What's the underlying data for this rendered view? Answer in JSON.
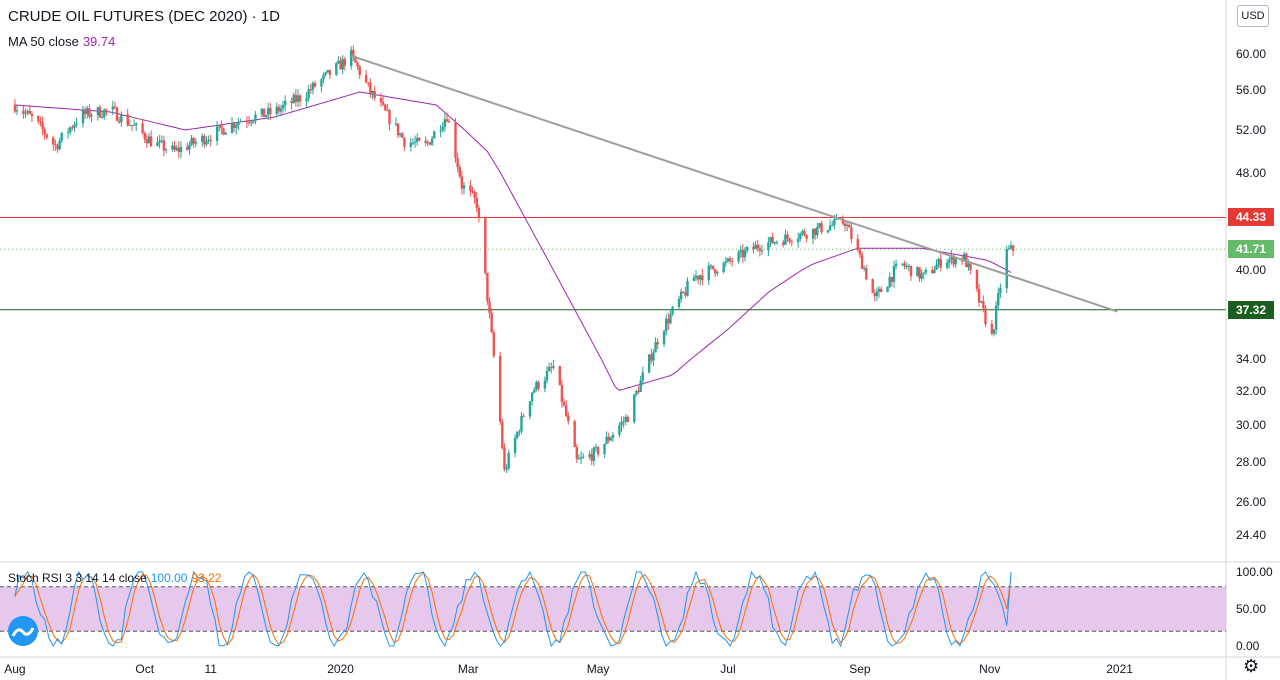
{
  "header": {
    "title": "CRUDE OIL FUTURES (DEC 2020) · 1D",
    "ma_label": "MA 50 close",
    "ma_value": "39.74"
  },
  "indicator": {
    "label": "Stoch RSI 3 3 14 14 close",
    "k_value": "100.00",
    "d_value": "93.22"
  },
  "currency": "USD",
  "price_labels": [
    {
      "value": "44.33",
      "color": "#e53935"
    },
    {
      "value": "41.71",
      "color": "#66bb6a"
    },
    {
      "value": "37.32",
      "color": "#1b5e20"
    }
  ],
  "colors": {
    "up": "#26a69a",
    "down": "#ef5350",
    "ma": "#9c27b0",
    "trend": "#9e9e9e",
    "k": "#2196f3",
    "d": "#ff6d00",
    "rsi_band": "#e1bee7"
  },
  "chart_data": {
    "type": "candlestick",
    "x_tick_labels": [
      "Aug",
      "Oct",
      "11",
      "2020",
      "Mar",
      "May",
      "Jul",
      "Sep",
      "Nov",
      "2021"
    ],
    "y_tick_labels": [
      "24.40",
      "26.00",
      "28.00",
      "30.00",
      "32.00",
      "34.00",
      "40.00",
      "48.00",
      "52.00",
      "56.00",
      "60.00"
    ],
    "ylim": [
      23,
      63
    ],
    "price_anchors": [
      [
        "2019-08-01",
        54.5
      ],
      [
        "2019-08-10",
        53.0
      ],
      [
        "2019-08-20",
        50.5
      ],
      [
        "2019-09-01",
        53.5
      ],
      [
        "2019-09-15",
        54.0
      ],
      [
        "2019-09-25",
        52.5
      ],
      [
        "2019-10-05",
        50.8
      ],
      [
        "2019-10-15",
        50.0
      ],
      [
        "2019-11-01",
        51.5
      ],
      [
        "2019-11-15",
        53.0
      ],
      [
        "2019-12-01",
        53.8
      ],
      [
        "2019-12-15",
        55.5
      ],
      [
        "2020-01-06",
        59.8
      ],
      [
        "2020-01-15",
        55.8
      ],
      [
        "2020-01-31",
        51.0
      ],
      [
        "2020-02-10",
        50.5
      ],
      [
        "2020-02-20",
        53.5
      ],
      [
        "2020-02-27",
        47.0
      ],
      [
        "2020-03-05",
        45.5
      ],
      [
        "2020-03-09",
        39.5
      ],
      [
        "2020-03-18",
        27.5
      ],
      [
        "2020-03-31",
        32.0
      ],
      [
        "2020-04-10",
        33.5
      ],
      [
        "2020-04-21",
        28.0
      ],
      [
        "2020-04-30",
        28.5
      ],
      [
        "2020-05-15",
        30.5
      ],
      [
        "2020-05-31",
        36.0
      ],
      [
        "2020-06-15",
        39.5
      ],
      [
        "2020-06-30",
        40.5
      ],
      [
        "2020-07-15",
        42.0
      ],
      [
        "2020-08-05",
        43.0
      ],
      [
        "2020-08-25",
        44.0
      ],
      [
        "2020-09-08",
        38.0
      ],
      [
        "2020-09-20",
        40.5
      ],
      [
        "2020-10-01",
        39.5
      ],
      [
        "2020-10-10",
        40.8
      ],
      [
        "2020-10-20",
        41.0
      ],
      [
        "2020-10-28",
        37.5
      ],
      [
        "2020-11-02",
        35.5
      ],
      [
        "2020-11-09",
        41.5
      ],
      [
        "2020-11-12",
        41.71
      ]
    ],
    "ma50_anchors": [
      [
        "2019-08-01",
        54.5
      ],
      [
        "2019-09-15",
        53.8
      ],
      [
        "2019-10-20",
        52.0
      ],
      [
        "2019-12-01",
        53.3
      ],
      [
        "2020-01-10",
        55.8
      ],
      [
        "2020-02-15",
        54.5
      ],
      [
        "2020-03-10",
        50.0
      ],
      [
        "2020-04-10",
        40.0
      ],
      [
        "2020-05-10",
        32.0
      ],
      [
        "2020-06-05",
        33.0
      ],
      [
        "2020-07-01",
        36.0
      ],
      [
        "2020-07-20",
        38.5
      ],
      [
        "2020-08-10",
        40.5
      ],
      [
        "2020-08-31",
        41.8
      ],
      [
        "2020-09-30",
        41.8
      ],
      [
        "2020-10-31",
        40.8
      ],
      [
        "2020-11-12",
        39.74
      ]
    ],
    "trendline": [
      [
        "2020-01-06",
        59.8
      ],
      [
        "2020-12-31",
        37.2
      ]
    ],
    "horizontal_lines": [
      44.33,
      37.32
    ],
    "last_price": 41.71,
    "stoch_rsi": {
      "ylim": [
        0,
        100
      ],
      "y_tick_labels": [
        "0.00",
        "50.00",
        "100.00"
      ],
      "band": [
        20,
        80
      ],
      "k_last": 100.0,
      "d_last": 93.22
    }
  }
}
